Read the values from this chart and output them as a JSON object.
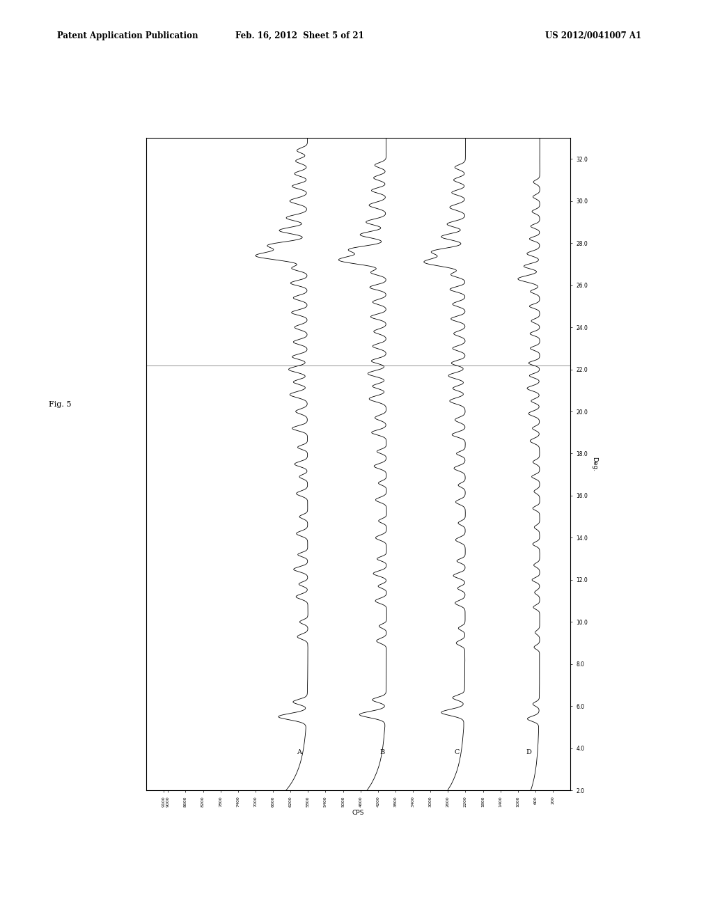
{
  "title_left": "Patent Application Publication",
  "title_center": "Feb. 16, 2012  Sheet 5 of 21",
  "title_right": "US 2012/0041007 A1",
  "fig_label": "Fig. 5",
  "deg_label": "Deg.",
  "cps_label": "CPS",
  "deg_min": 2.0,
  "deg_max": 33.0,
  "deg_ticks": [
    2.0,
    4.0,
    6.0,
    8.0,
    10.0,
    12.0,
    14.0,
    16.0,
    18.0,
    20.0,
    22.0,
    24.0,
    26.0,
    28.0,
    30.0,
    32.0
  ],
  "cps_ticks_left": [
    9100,
    9000,
    8600,
    8200,
    7800,
    7400,
    7000,
    6600,
    6200,
    5800,
    5400,
    5000,
    4600,
    4200,
    3800,
    3400,
    3000,
    2600,
    2200,
    1800,
    1400,
    1000,
    600,
    200
  ],
  "cps_min": 0,
  "cps_max": 9500,
  "series_labels": [
    "A",
    "B",
    "C",
    "D"
  ],
  "background_color": "#ffffff",
  "line_color": "#000000"
}
